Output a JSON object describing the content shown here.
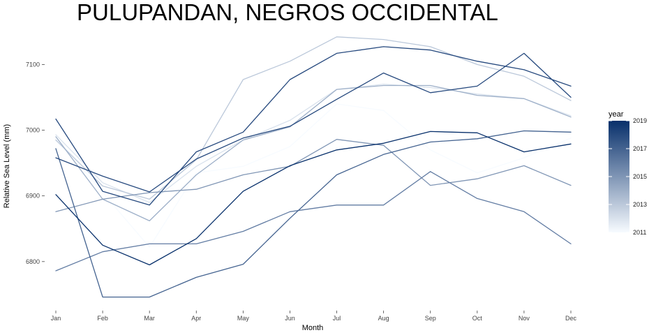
{
  "chart_data": {
    "type": "line",
    "title": "PULUPANDAN, NEGROS OCCIDENTAL",
    "xlabel": "Month",
    "ylabel": "Relative Sea Level (mm)",
    "categories": [
      "Jan",
      "Feb",
      "Mar",
      "Apr",
      "May",
      "Jun",
      "Jul",
      "Aug",
      "Sep",
      "Oct",
      "Nov",
      "Dec"
    ],
    "ylim": [
      6735,
      7145
    ],
    "yticks": [
      6800,
      6900,
      7000,
      7100
    ],
    "ytick_labels": [
      "6800",
      "6900",
      "7000",
      "7100"
    ],
    "grid": false,
    "legend": {
      "title": "year",
      "position": "right",
      "min": 2011,
      "max": 2019,
      "ticks": [
        "2011",
        "2013",
        "2015",
        "2017",
        "2019"
      ],
      "color_low": "#f7fbff",
      "color_high": "#08306b"
    },
    "series": [
      {
        "year": 2011,
        "values": [
          6990,
          6905,
          6822,
          6935,
          6945,
          6975,
          7040,
          7030,
          6970,
          6935,
          6958,
          6988
        ]
      },
      {
        "year": 2012,
        "values": [
          6993,
          6920,
          6890,
          6945,
          6985,
          7015,
          7062,
          7070,
          7065,
          7055,
          7048,
          7022
        ]
      },
      {
        "year": 2013,
        "values": [
          6985,
          6915,
          6895,
          6955,
          7077,
          7105,
          7142,
          7138,
          7127,
          7100,
          7082,
          7045
        ]
      },
      {
        "year": 2014,
        "values": [
          6990,
          6895,
          6862,
          6932,
          6985,
          7005,
          7062,
          7068,
          7068,
          7053,
          7048,
          7020
        ]
      },
      {
        "year": 2015,
        "values": [
          6876,
          6895,
          6905,
          6910,
          6932,
          6945,
          6986,
          6977,
          6916,
          6926,
          6946,
          6916
        ]
      },
      {
        "year": 2016,
        "values": [
          6786,
          6815,
          6827,
          6827,
          6846,
          6876,
          6886,
          6886,
          6937,
          6896,
          6876,
          6827
        ]
      },
      {
        "year": 2017,
        "values": [
          6972,
          6746,
          6746,
          6776,
          6796,
          6866,
          6932,
          6963,
          6982,
          6987,
          6999,
          6997
        ]
      },
      {
        "year": 2018,
        "values": [
          7017,
          6907,
          6886,
          6967,
          6997,
          7077,
          7117,
          7127,
          7122,
          7105,
          7092,
          7067
        ]
      },
      {
        "year": 2018,
        "values": [
          6958,
          6930,
          6906,
          6956,
          6988,
          7006,
          7047,
          7087,
          7057,
          7067,
          7117,
          7050
        ]
      },
      {
        "year": 2019,
        "values": [
          6902,
          6825,
          6795,
          6835,
          6907,
          6946,
          6970,
          6980,
          6998,
          6996,
          6967,
          6979
        ]
      }
    ]
  }
}
